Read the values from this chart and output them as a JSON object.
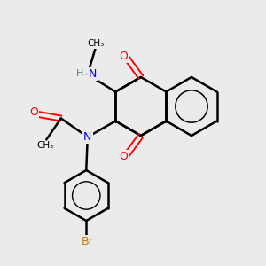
{
  "bg_color": "#ebebeb",
  "bond_color": "#000000",
  "N_color": "#0000ff",
  "O_color": "#ff0000",
  "Br_color": "#cc7700",
  "H_color": "#3d8b8b",
  "figsize": [
    3.0,
    3.0
  ],
  "dpi": 100,
  "xlim": [
    0,
    10
  ],
  "ylim": [
    0,
    10
  ]
}
